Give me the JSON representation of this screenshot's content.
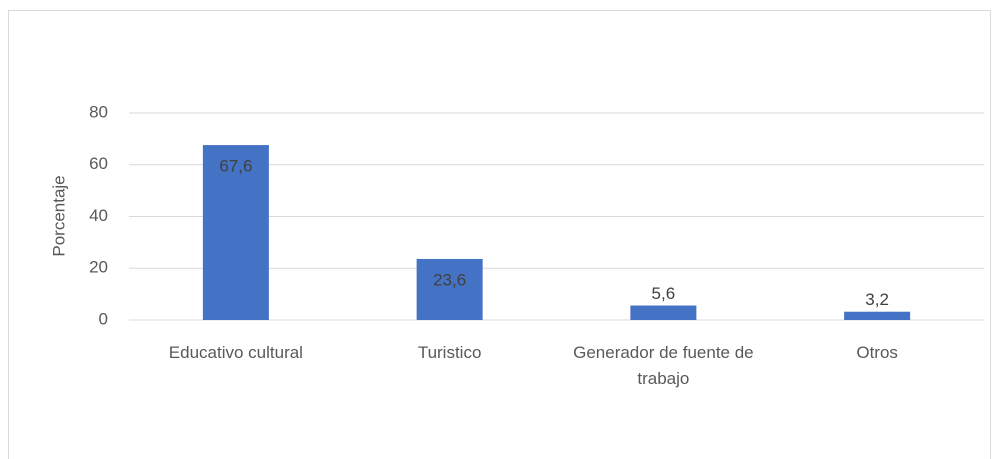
{
  "chart_data": {
    "type": "bar",
    "y_label": "Porcentaje",
    "categories": [
      "Educativo cultural",
      "Turistico",
      "Generador de fuente de trabajo",
      "Otros"
    ],
    "values": [
      67.6,
      23.6,
      5.6,
      3.2
    ],
    "value_labels": [
      "67,6",
      "23,6",
      "5,6",
      "3,2"
    ],
    "color": "#4472c4",
    "ylim": [
      0,
      80
    ],
    "yticks": [
      0,
      20,
      40,
      60,
      80
    ],
    "grid": true
  }
}
